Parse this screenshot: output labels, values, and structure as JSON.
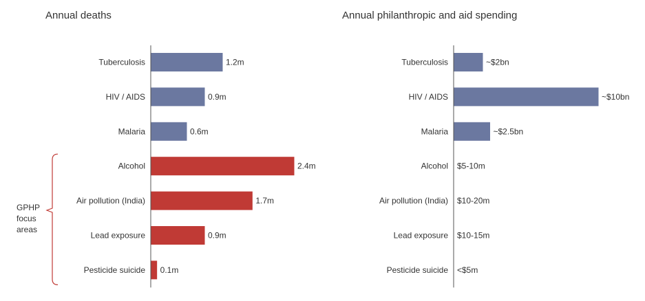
{
  "colors": {
    "focus": "#c03a35",
    "other": "#6b78a0",
    "axis": "#555555",
    "bracket": "#c03a35"
  },
  "group_label": [
    "GPHP",
    "focus",
    "areas"
  ],
  "chart_data": [
    {
      "type": "bar",
      "orientation": "horizontal",
      "title": "Annual deaths",
      "categories": [
        "Tuberculosis",
        "HIV / AIDS",
        "Malaria",
        "Alcohol",
        "Air pollution (India)",
        "Lead exposure",
        "Pesticide suicide"
      ],
      "values": [
        1.2,
        0.9,
        0.6,
        2.4,
        1.7,
        0.9,
        0.1
      ],
      "labels": [
        "1.2m",
        "0.9m",
        "0.6m",
        "2.4m",
        "1.7m",
        "0.9m",
        "0.1m"
      ],
      "unit": "million deaths",
      "xlim": [
        0,
        2.4
      ],
      "focus": [
        false,
        false,
        false,
        true,
        true,
        true,
        true
      ]
    },
    {
      "type": "bar",
      "orientation": "horizontal",
      "title": "Annual philanthropic and aid spending",
      "categories": [
        "Tuberculosis",
        "HIV / AIDS",
        "Malaria",
        "Alcohol",
        "Air pollution (India)",
        "Lead exposure",
        "Pesticide suicide"
      ],
      "values": [
        2,
        10,
        2.5,
        null,
        null,
        null,
        null
      ],
      "labels": [
        "~$2bn",
        "~$10bn",
        "~$2.5bn",
        "$5-10m",
        "$10-20m",
        "$10-15m",
        "<$5m"
      ],
      "unit": "USD billion",
      "xlim": [
        0,
        10
      ],
      "focus": [
        false,
        false,
        false,
        true,
        true,
        true,
        true
      ]
    }
  ]
}
